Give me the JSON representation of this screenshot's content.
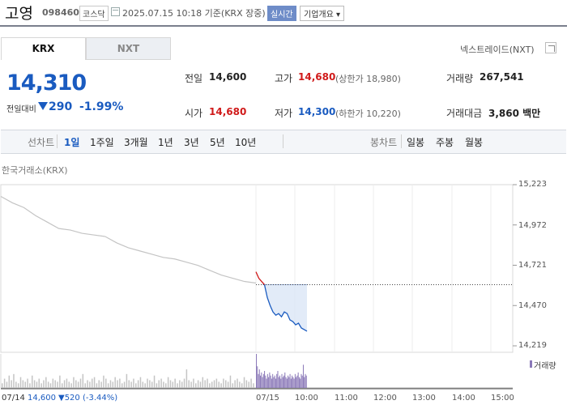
{
  "header": {
    "company": "고영",
    "code": "098460",
    "market": "코스닥",
    "datetime": "2025.07.15 10:18 기준(KRX 장중)",
    "realtime_badge": "실시간",
    "overview_label": "기업개요 ▾"
  },
  "tabs": {
    "krx": "KRX",
    "nxt": "NXT"
  },
  "nxt_link": "넥스트레이드(NXT)",
  "price": {
    "current": "14,310",
    "change_label": "전일대비",
    "change": "290",
    "change_pct": "-1.99%"
  },
  "summary": {
    "prev_label": "전일",
    "prev": "14,600",
    "high_label": "고가",
    "high": "14,680",
    "upper_limit": "(상한가 18,980)",
    "volume_label": "거래량",
    "volume": "267,541",
    "open_label": "시가",
    "open": "14,680",
    "low_label": "저가",
    "low": "14,300",
    "lower_limit": "(하한가 10,220)",
    "amount_label": "거래대금",
    "amount": "3,860 백만"
  },
  "toolbar": {
    "line_label": "선차트",
    "periods": [
      "1일",
      "1주일",
      "3개월",
      "1년",
      "3년",
      "5년",
      "10년"
    ],
    "active_period": "1일",
    "candle_label": "봉차트",
    "candle_periods": [
      "일봉",
      "주봉",
      "월봉"
    ]
  },
  "colors": {
    "up": "#d01a1a",
    "down": "#1a5bc0",
    "prev_day_line": "#c4c4c4",
    "volume_prev": "#c4c4c4",
    "volume_today": "#8a78b8",
    "area_fill": "#dbe6f6"
  },
  "chart_data": {
    "type": "line",
    "source_label": "한국거래소(KRX)",
    "y_ticks": [
      "15,223",
      "14,972",
      "14,721",
      "14,470",
      "14,219"
    ],
    "ylim": [
      14219,
      15223
    ],
    "x_ticks": [
      "07/15",
      "10:00",
      "11:00",
      "12:00",
      "13:00",
      "14:00",
      "15:00"
    ],
    "reference_price": 14600,
    "series": [
      {
        "name": "07/14",
        "x": [
          "07/14 09:00",
          "09:10",
          "09:20",
          "09:30",
          "09:45",
          "10:00",
          "10:20",
          "10:40",
          "11:00",
          "11:20",
          "11:40",
          "12:00",
          "12:20",
          "12:40",
          "13:00",
          "13:20",
          "13:40",
          "14:00",
          "14:20",
          "14:40",
          "15:00",
          "15:20",
          "15:30"
        ],
        "values": [
          15150,
          15110,
          15080,
          15030,
          14990,
          14950,
          14940,
          14920,
          14910,
          14900,
          14860,
          14830,
          14810,
          14790,
          14770,
          14760,
          14740,
          14720,
          14690,
          14660,
          14640,
          14620,
          14610
        ]
      },
      {
        "name": "07/15",
        "x": [
          "09:00",
          "09:02",
          "09:05",
          "09:08",
          "09:12",
          "09:16",
          "09:20",
          "09:25",
          "09:30",
          "09:35",
          "09:40",
          "09:45",
          "09:50",
          "09:55",
          "10:00",
          "10:05",
          "10:10",
          "10:15",
          "10:18"
        ],
        "values": [
          14680,
          14640,
          14620,
          14600,
          14520,
          14470,
          14430,
          14410,
          14420,
          14400,
          14430,
          14420,
          14380,
          14370,
          14350,
          14360,
          14330,
          14320,
          14310
        ]
      }
    ],
    "volume_label": "거래량",
    "volume_prev_day": [
      3,
      6,
      4,
      8,
      5,
      9,
      4,
      3,
      7,
      5,
      4,
      6,
      3,
      8,
      5,
      4,
      6,
      3,
      5,
      7,
      4,
      3,
      6,
      5,
      4,
      8,
      3,
      5,
      6,
      4,
      3,
      7,
      5,
      4,
      6,
      9,
      3,
      5,
      4,
      6,
      7,
      3,
      5,
      4,
      8,
      6,
      3,
      5,
      4,
      7,
      5,
      6,
      3,
      4,
      9,
      5,
      4,
      6,
      3,
      5,
      7,
      4,
      3,
      6,
      5,
      4,
      8,
      3,
      5,
      6,
      4,
      3,
      7,
      5,
      4,
      6,
      3,
      5,
      4,
      6,
      12,
      5,
      4,
      6,
      3,
      5,
      4,
      7,
      5,
      6,
      3,
      4,
      5,
      6,
      4,
      3,
      6,
      5,
      4,
      8,
      3,
      5,
      6,
      4,
      3,
      7,
      5,
      4,
      6,
      3
    ],
    "volume_today": [
      22,
      14,
      9,
      12,
      8,
      10,
      7,
      9,
      11,
      8,
      6,
      9,
      7,
      10,
      8,
      6,
      9,
      7,
      8,
      6,
      9,
      11,
      7,
      8,
      6,
      9,
      7,
      8,
      10,
      7,
      6,
      8,
      7,
      9,
      6,
      8,
      7,
      6,
      9,
      7,
      8,
      10,
      7,
      6,
      9,
      8,
      15,
      7,
      9,
      8
    ]
  },
  "footer": {
    "date": "07/14",
    "price": "14,600",
    "change": "▼520 (-3.44%)"
  }
}
